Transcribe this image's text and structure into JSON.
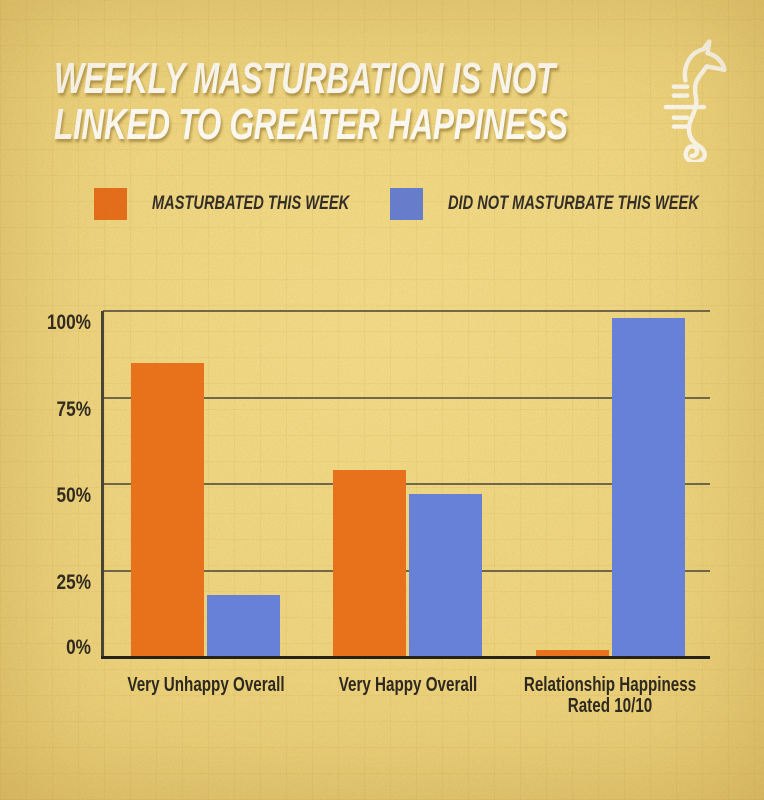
{
  "title": {
    "line1": "WEEKLY MASTURBATION IS NOT",
    "line2": "LINKED TO GREATER HAPPINESS"
  },
  "logo": "seahorse-line-drawing",
  "colors": {
    "background": "#efd682",
    "orange": "#e8711c",
    "blue": "#6881d8",
    "gridline": "#5b5440",
    "axis": "#272219",
    "text_dark": "#2e2a22",
    "title_text": "#ffffff"
  },
  "chart_data": {
    "type": "bar",
    "title": "WEEKLY MASTURBATION IS NOT LINKED TO GREATER HAPPINESS",
    "categories": [
      "Very Unhappy Overall",
      "Very Happy Overall",
      "Relationship Happiness\nRated 10/10"
    ],
    "series": [
      {
        "name": "MASTURBATED THIS WEEK",
        "color": "#e8711c",
        "values": [
          85,
          54,
          2
        ]
      },
      {
        "name": "DID NOT MASTURBATE THIS WEEK",
        "color": "#6881d8",
        "values": [
          18,
          47,
          98
        ]
      }
    ],
    "ylim": [
      0,
      100
    ],
    "yticks": [
      {
        "value": 100,
        "label": "100%"
      },
      {
        "value": 75,
        "label": "75%"
      },
      {
        "value": 50,
        "label": "50%"
      },
      {
        "value": 25,
        "label": "25%"
      },
      {
        "value": 0,
        "label": "0%"
      }
    ],
    "xlabel": "",
    "ylabel": "",
    "grid": true,
    "legend_position": "top"
  }
}
